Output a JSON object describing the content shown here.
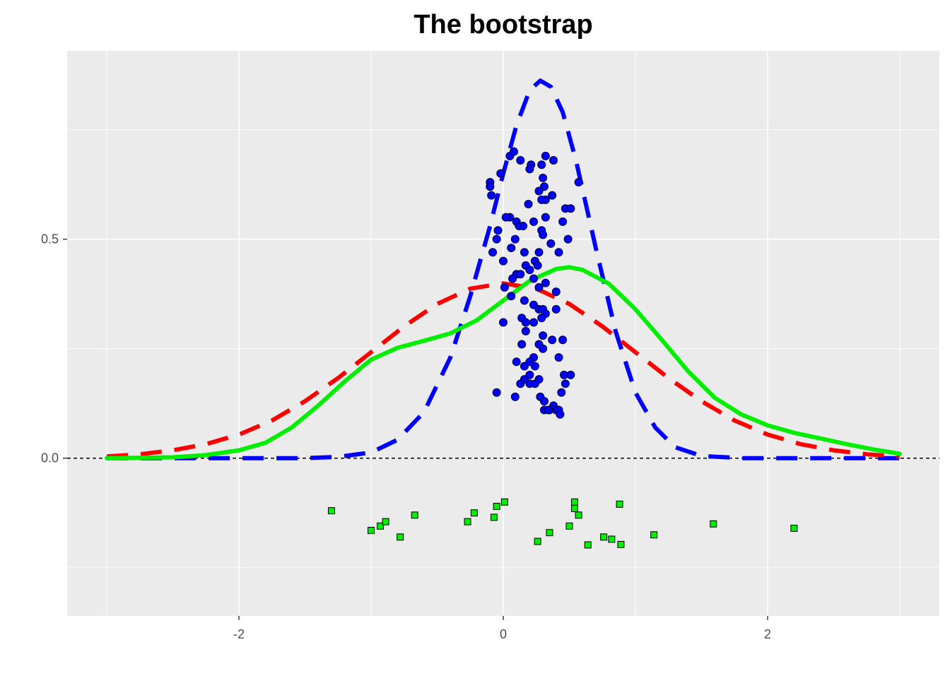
{
  "chart_data": {
    "type": "line",
    "title": "The bootstrap",
    "xlabel": "",
    "ylabel": "",
    "xlim": [
      -3.3,
      3.3
    ],
    "ylim": [
      -0.36,
      0.93
    ],
    "x_ticks": [
      -2,
      0,
      2
    ],
    "x_tick_labels": [
      "-2",
      "0",
      "2"
    ],
    "y_ticks": [
      0.0,
      0.5
    ],
    "y_tick_labels": [
      "0.0",
      "0.5"
    ],
    "grid": true,
    "panel_background": "#EBEBEB",
    "zero_reference_line": {
      "y": 0,
      "style": "dashed",
      "color": "#000000"
    },
    "series": [
      {
        "kind": "line",
        "style": "dashed",
        "color": "#FF0000",
        "points": [
          [
            -3.0,
            0.004
          ],
          [
            -2.75,
            0.009
          ],
          [
            -2.5,
            0.018
          ],
          [
            -2.25,
            0.032
          ],
          [
            -2.0,
            0.054
          ],
          [
            -1.75,
            0.086
          ],
          [
            -1.5,
            0.13
          ],
          [
            -1.25,
            0.183
          ],
          [
            -1.0,
            0.242
          ],
          [
            -0.75,
            0.301
          ],
          [
            -0.5,
            0.352
          ],
          [
            -0.25,
            0.387
          ],
          [
            0.0,
            0.399
          ],
          [
            0.25,
            0.387
          ],
          [
            0.5,
            0.352
          ],
          [
            0.75,
            0.301
          ],
          [
            1.0,
            0.242
          ],
          [
            1.25,
            0.183
          ],
          [
            1.5,
            0.13
          ],
          [
            1.75,
            0.086
          ],
          [
            2.0,
            0.054
          ],
          [
            2.25,
            0.032
          ],
          [
            2.5,
            0.018
          ],
          [
            2.75,
            0.009
          ],
          [
            3.0,
            0.004
          ]
        ]
      },
      {
        "kind": "line",
        "style": "solid",
        "color": "#00EE00",
        "points": [
          [
            -3.0,
            0.0
          ],
          [
            -2.5,
            0.002
          ],
          [
            -2.25,
            0.007
          ],
          [
            -2.0,
            0.018
          ],
          [
            -1.8,
            0.035
          ],
          [
            -1.6,
            0.07
          ],
          [
            -1.4,
            0.12
          ],
          [
            -1.2,
            0.175
          ],
          [
            -1.0,
            0.225
          ],
          [
            -0.8,
            0.252
          ],
          [
            -0.6,
            0.268
          ],
          [
            -0.4,
            0.285
          ],
          [
            -0.2,
            0.315
          ],
          [
            0.0,
            0.36
          ],
          [
            0.2,
            0.405
          ],
          [
            0.4,
            0.432
          ],
          [
            0.5,
            0.436
          ],
          [
            0.6,
            0.43
          ],
          [
            0.8,
            0.398
          ],
          [
            1.0,
            0.34
          ],
          [
            1.2,
            0.27
          ],
          [
            1.4,
            0.198
          ],
          [
            1.6,
            0.138
          ],
          [
            1.8,
            0.1
          ],
          [
            2.0,
            0.075
          ],
          [
            2.2,
            0.058
          ],
          [
            2.4,
            0.045
          ],
          [
            2.6,
            0.032
          ],
          [
            2.8,
            0.02
          ],
          [
            3.0,
            0.01
          ]
        ]
      },
      {
        "kind": "line",
        "style": "dashed",
        "color": "#0000FF",
        "points": [
          [
            -3.0,
            0.0
          ],
          [
            -1.5,
            0.0
          ],
          [
            -1.25,
            0.003
          ],
          [
            -1.0,
            0.013
          ],
          [
            -0.8,
            0.042
          ],
          [
            -0.6,
            0.105
          ],
          [
            -0.4,
            0.23
          ],
          [
            -0.25,
            0.37
          ],
          [
            -0.1,
            0.53
          ],
          [
            0.0,
            0.65
          ],
          [
            0.1,
            0.76
          ],
          [
            0.2,
            0.84
          ],
          [
            0.28,
            0.862
          ],
          [
            0.36,
            0.848
          ],
          [
            0.45,
            0.79
          ],
          [
            0.55,
            0.68
          ],
          [
            0.7,
            0.48
          ],
          [
            0.85,
            0.29
          ],
          [
            1.0,
            0.15
          ],
          [
            1.15,
            0.07
          ],
          [
            1.3,
            0.025
          ],
          [
            1.5,
            0.005
          ],
          [
            1.8,
            0.0
          ],
          [
            3.0,
            0.0
          ]
        ]
      },
      {
        "kind": "scatter",
        "marker": "circle",
        "color": "#0000FF",
        "points": [
          [
            0.05,
            0.69
          ],
          [
            0.08,
            0.7
          ],
          [
            0.13,
            0.68
          ],
          [
            0.21,
            0.67
          ],
          [
            0.29,
            0.67
          ],
          [
            0.32,
            0.69
          ],
          [
            0.38,
            0.68
          ],
          [
            -0.1,
            0.63
          ],
          [
            -0.02,
            0.65
          ],
          [
            0.2,
            0.66
          ],
          [
            0.3,
            0.64
          ],
          [
            0.31,
            0.62
          ],
          [
            0.57,
            0.63
          ],
          [
            -0.1,
            0.62
          ],
          [
            0.27,
            0.61
          ],
          [
            0.37,
            0.6
          ],
          [
            0.32,
            0.59
          ],
          [
            -0.09,
            0.6
          ],
          [
            0.19,
            0.58
          ],
          [
            0.29,
            0.59
          ],
          [
            0.47,
            0.57
          ],
          [
            0.51,
            0.57
          ],
          [
            0.05,
            0.55
          ],
          [
            0.02,
            0.55
          ],
          [
            0.1,
            0.54
          ],
          [
            0.23,
            0.54
          ],
          [
            0.32,
            0.55
          ],
          [
            0.45,
            0.54
          ],
          [
            0.29,
            0.52
          ],
          [
            0.12,
            0.53
          ],
          [
            -0.04,
            0.52
          ],
          [
            0.09,
            0.5
          ],
          [
            0.15,
            0.53
          ],
          [
            0.3,
            0.51
          ],
          [
            0.36,
            0.49
          ],
          [
            0.49,
            0.5
          ],
          [
            -0.05,
            0.5
          ],
          [
            0.06,
            0.48
          ],
          [
            0.16,
            0.47
          ],
          [
            0.27,
            0.47
          ],
          [
            0.24,
            0.45
          ],
          [
            0.42,
            0.47
          ],
          [
            -0.08,
            0.47
          ],
          [
            0.0,
            0.45
          ],
          [
            0.17,
            0.44
          ],
          [
            0.2,
            0.43
          ],
          [
            0.26,
            0.44
          ],
          [
            0.1,
            0.42
          ],
          [
            0.07,
            0.41
          ],
          [
            0.13,
            0.42
          ],
          [
            0.23,
            0.41
          ],
          [
            0.32,
            0.4
          ],
          [
            0.27,
            0.39
          ],
          [
            0.4,
            0.38
          ],
          [
            0.01,
            0.39
          ],
          [
            0.16,
            0.36
          ],
          [
            0.06,
            0.37
          ],
          [
            0.23,
            0.35
          ],
          [
            0.27,
            0.34
          ],
          [
            0.3,
            0.34
          ],
          [
            0.32,
            0.33
          ],
          [
            0.4,
            0.34
          ],
          [
            0.14,
            0.32
          ],
          [
            0.17,
            0.31
          ],
          [
            0.23,
            0.31
          ],
          [
            0.29,
            0.32
          ],
          [
            0.0,
            0.31
          ],
          [
            0.17,
            0.29
          ],
          [
            0.3,
            0.28
          ],
          [
            0.27,
            0.26
          ],
          [
            0.37,
            0.27
          ],
          [
            0.45,
            0.27
          ],
          [
            0.14,
            0.26
          ],
          [
            0.3,
            0.25
          ],
          [
            0.23,
            0.23
          ],
          [
            0.42,
            0.23
          ],
          [
            0.2,
            0.22
          ],
          [
            0.16,
            0.21
          ],
          [
            0.24,
            0.21
          ],
          [
            0.1,
            0.22
          ],
          [
            0.16,
            0.18
          ],
          [
            0.2,
            0.19
          ],
          [
            0.2,
            0.17
          ],
          [
            0.27,
            0.18
          ],
          [
            0.46,
            0.19
          ],
          [
            0.51,
            0.19
          ],
          [
            0.13,
            0.17
          ],
          [
            0.24,
            0.17
          ],
          [
            0.47,
            0.17
          ],
          [
            -0.05,
            0.15
          ],
          [
            0.28,
            0.14
          ],
          [
            0.44,
            0.15
          ],
          [
            0.09,
            0.14
          ],
          [
            0.31,
            0.13
          ],
          [
            0.38,
            0.12
          ],
          [
            0.31,
            0.11
          ],
          [
            0.4,
            0.11
          ],
          [
            0.35,
            0.11
          ],
          [
            0.42,
            0.11
          ],
          [
            0.34,
            0.11
          ],
          [
            0.43,
            0.1
          ]
        ]
      },
      {
        "kind": "scatter",
        "marker": "square",
        "color": "#00EE00",
        "points": [
          [
            -1.3,
            -0.12
          ],
          [
            -1.0,
            -0.165
          ],
          [
            -0.93,
            -0.155
          ],
          [
            -0.89,
            -0.145
          ],
          [
            -0.78,
            -0.18
          ],
          [
            -0.67,
            -0.13
          ],
          [
            -0.27,
            -0.145
          ],
          [
            -0.22,
            -0.125
          ],
          [
            -0.07,
            -0.135
          ],
          [
            -0.05,
            -0.11
          ],
          [
            0.01,
            -0.1
          ],
          [
            0.26,
            -0.19
          ],
          [
            0.35,
            -0.17
          ],
          [
            0.5,
            -0.155
          ],
          [
            0.54,
            -0.1
          ],
          [
            0.54,
            -0.115
          ],
          [
            0.57,
            -0.13
          ],
          [
            0.64,
            -0.198
          ],
          [
            0.76,
            -0.18
          ],
          [
            0.82,
            -0.185
          ],
          [
            0.88,
            -0.105
          ],
          [
            0.89,
            -0.197
          ],
          [
            1.14,
            -0.175
          ],
          [
            1.59,
            -0.15
          ],
          [
            2.2,
            -0.16
          ]
        ]
      }
    ]
  }
}
